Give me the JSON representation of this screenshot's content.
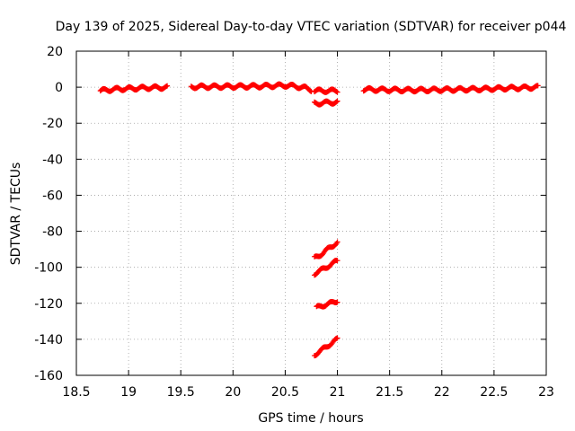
{
  "chart_data": {
    "type": "scatter",
    "title": "Day 139 of 2025, Sidereal Day-to-day VTEC variation (SDTVAR) for receiver p044",
    "xlabel": "GPS time / hours",
    "ylabel": "SDTVAR / TECUs",
    "xlim": [
      18.5,
      23
    ],
    "ylim": [
      -160,
      20
    ],
    "xticks": [
      18.5,
      19,
      19.5,
      20,
      20.5,
      21,
      21.5,
      22,
      22.5,
      23
    ],
    "yticks": [
      20,
      0,
      -20,
      -40,
      -60,
      -80,
      -100,
      -120,
      -140,
      -160
    ],
    "xtick_labels": [
      "18.5",
      "19",
      "19.5",
      "20",
      "20.5",
      "21",
      "21.5",
      "22",
      "22.5",
      "23"
    ],
    "ytick_labels": [
      "20",
      "0",
      "-20",
      "-40",
      "-60",
      "-80",
      "-100",
      "-120",
      "-140",
      "-160"
    ],
    "grid": true,
    "marker": "+",
    "color": "#ff0000",
    "series": [
      {
        "name": "near-zero segment 1",
        "x": [
          18.73,
          18.8,
          18.9,
          19.0,
          19.1,
          19.2,
          19.3,
          19.37
        ],
        "y": [
          -2,
          -1.5,
          -1,
          -0.8,
          -0.5,
          -0.3,
          -0.2,
          -0.1
        ]
      },
      {
        "name": "near-zero segment 2",
        "x": [
          19.6,
          19.8,
          20.0,
          20.2,
          20.4,
          20.5,
          20.6,
          20.7,
          20.75
        ],
        "y": [
          0.2,
          0.3,
          0.4,
          0.5,
          0.8,
          1.0,
          0.5,
          -0.5,
          -1.5
        ]
      },
      {
        "name": "offset -2",
        "x": [
          20.78,
          20.85,
          20.92,
          21.0
        ],
        "y": [
          -2,
          -2,
          -2,
          -2
        ]
      },
      {
        "name": "offset -9",
        "x": [
          20.78,
          20.85,
          20.92,
          21.0
        ],
        "y": [
          -9,
          -8.8,
          -8.5,
          -8.3
        ]
      },
      {
        "name": "near-zero segment 3",
        "x": [
          21.25,
          21.4,
          21.6,
          21.8,
          22.0,
          22.2,
          22.4,
          22.6,
          22.8,
          22.92
        ],
        "y": [
          -1.2,
          -1.4,
          -1.6,
          -1.6,
          -1.4,
          -1.2,
          -1.0,
          -0.6,
          -0.3,
          0
        ]
      },
      {
        "name": "step -95",
        "x": [
          20.78,
          20.85,
          20.92,
          21.0
        ],
        "y": [
          -95,
          -92.5,
          -89.5,
          -86
        ]
      },
      {
        "name": "step -103",
        "x": [
          20.78,
          20.85,
          20.92,
          21.0
        ],
        "y": [
          -103.5,
          -101.5,
          -99,
          -96.5
        ]
      },
      {
        "name": "step -122",
        "x": [
          20.8,
          20.87,
          20.94,
          21.0
        ],
        "y": [
          -122.5,
          -121,
          -120,
          -118.5
        ]
      },
      {
        "name": "step -148",
        "x": [
          20.78,
          20.85,
          20.92,
          21.0
        ],
        "y": [
          -148.5,
          -146,
          -143,
          -140
        ]
      }
    ]
  }
}
